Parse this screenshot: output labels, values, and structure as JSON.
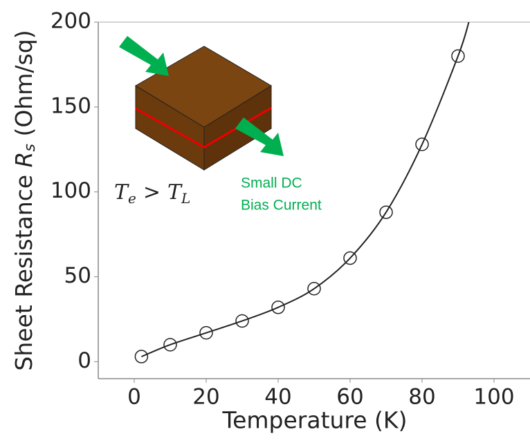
{
  "chart_data": {
    "type": "scatter",
    "xlabel": "Temperature (K)",
    "ylabel_parts": [
      "Sheet Resistance ",
      "R",
      "s",
      " (Ohm/sq)"
    ],
    "x": [
      2,
      10,
      20,
      30,
      40,
      50,
      60,
      70,
      80,
      90
    ],
    "values": [
      3,
      10,
      17,
      24,
      32,
      43,
      61,
      88,
      128,
      180
    ],
    "fit": {
      "x": [
        2,
        10,
        20,
        30,
        40,
        50,
        60,
        70,
        80,
        90,
        93
      ],
      "values": [
        3,
        10,
        17,
        24,
        32,
        43,
        61,
        88,
        128,
        180,
        200
      ]
    },
    "xlim": [
      -10,
      110
    ],
    "xticks": [
      0,
      20,
      40,
      60,
      80,
      100
    ],
    "ylim": [
      -10,
      200
    ],
    "yticks": [
      0,
      50,
      100,
      150,
      200
    ],
    "color": "#222222",
    "inset_label": [
      "T",
      "e",
      ">",
      "T",
      "L"
    ],
    "annotations": [
      "Small DC",
      "Bias Current"
    ]
  }
}
